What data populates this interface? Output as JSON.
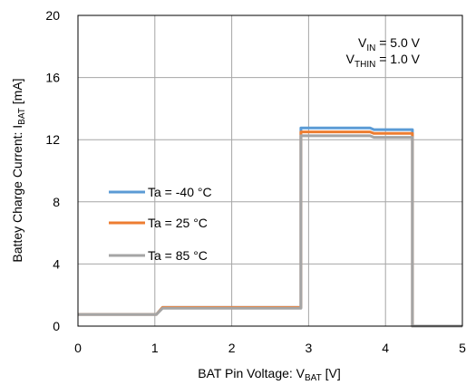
{
  "chart_data": {
    "type": "line",
    "xlabel": {
      "main": "BAT Pin Voltage: V",
      "sub": "BAT",
      "unit": " [V]"
    },
    "ylabel": {
      "main": "Battey Charge Current: I",
      "sub": "BAT",
      "unit": " [mA]"
    },
    "xlim": [
      0,
      5
    ],
    "ylim": [
      0,
      20
    ],
    "xticks": [
      "0",
      "1",
      "2",
      "3",
      "4",
      "5"
    ],
    "yticks": [
      "0",
      "4",
      "8",
      "12",
      "16",
      "20"
    ],
    "grid": true,
    "legend_position": "left-middle",
    "conditions": [
      {
        "main": "V",
        "sub": "IN",
        "rest": " = 5.0 V"
      },
      {
        "main": "V",
        "sub": "THIN",
        "rest": " = 1.0 V"
      }
    ],
    "series": [
      {
        "name": "Ta =  -40 °C",
        "color": "#5b9bd5",
        "x": [
          0,
          1.02,
          1.1,
          2.9,
          2.9,
          3.8,
          3.85,
          4.35,
          4.35,
          5.0
        ],
        "y": [
          0.75,
          0.75,
          1.2,
          1.2,
          12.75,
          12.75,
          12.65,
          12.65,
          0,
          0
        ]
      },
      {
        "name": "Ta =  25 °C",
        "color": "#ed7d31",
        "x": [
          0,
          1.02,
          1.1,
          2.9,
          2.9,
          3.8,
          3.85,
          4.35,
          4.35,
          5.0
        ],
        "y": [
          0.75,
          0.75,
          1.2,
          1.2,
          12.5,
          12.5,
          12.4,
          12.4,
          0,
          0
        ]
      },
      {
        "name": "Ta =  85 °C",
        "color": "#a5a5a5",
        "x": [
          0,
          1.02,
          1.1,
          2.9,
          2.9,
          3.8,
          3.85,
          4.35,
          4.35,
          5.0
        ],
        "y": [
          0.75,
          0.75,
          1.15,
          1.15,
          12.25,
          12.25,
          12.15,
          12.15,
          0,
          0
        ]
      }
    ]
  }
}
